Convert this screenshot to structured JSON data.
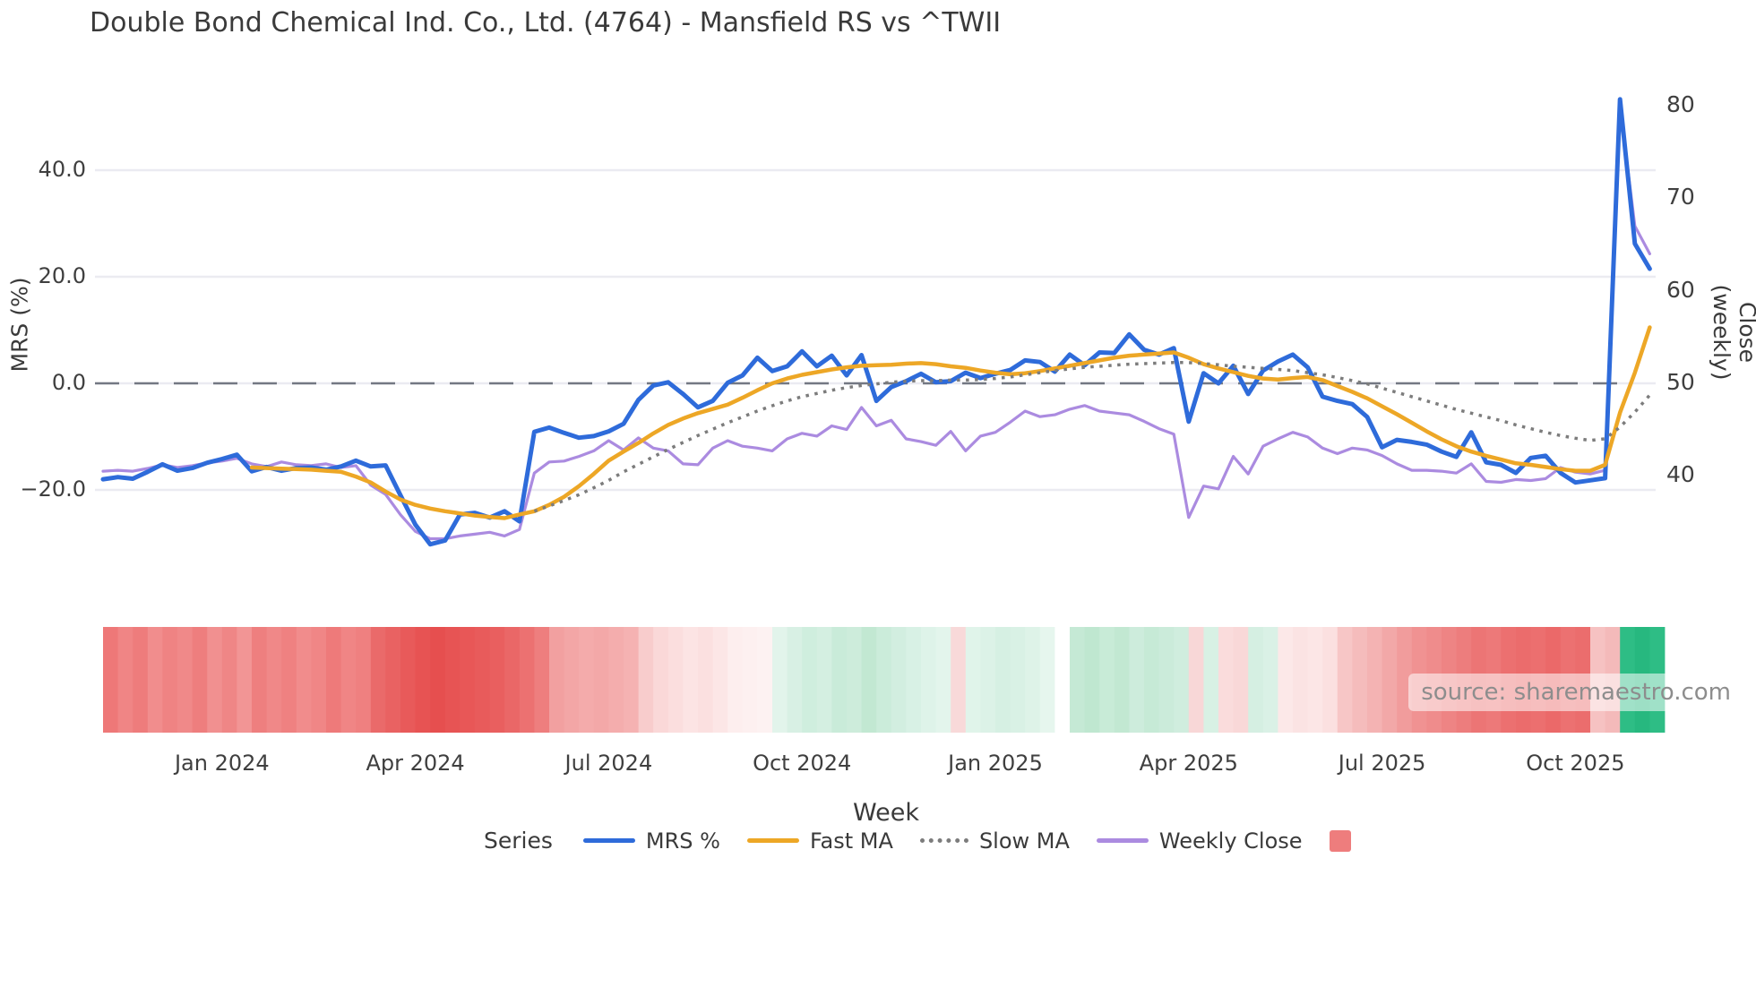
{
  "title": "Double Bond Chemical Ind. Co., Ltd. (4764) - Mansfield RS vs ^TWII",
  "source_text": "source: sharemaestro.com",
  "axes": {
    "left": {
      "label": "MRS (%)",
      "ticks": [
        {
          "label": "40.0",
          "value": 40
        },
        {
          "label": "20.0",
          "value": 20
        },
        {
          "label": "0.0",
          "value": 0
        },
        {
          "label": "−20.0",
          "value": -20
        }
      ]
    },
    "right": {
      "label": "Close (weekly)",
      "ticks": [
        {
          "label": "80",
          "value": 80
        },
        {
          "label": "70",
          "value": 70
        },
        {
          "label": "60",
          "value": 60
        },
        {
          "label": "50",
          "value": 50
        },
        {
          "label": "40",
          "value": 40
        }
      ]
    },
    "x": {
      "label": "Week",
      "ticks": [
        {
          "label": "Jan 2024",
          "week": 8
        },
        {
          "label": "Apr 2024",
          "week": 21
        },
        {
          "label": "Jul 2024",
          "week": 34
        },
        {
          "label": "Oct 2024",
          "week": 47
        },
        {
          "label": "Jan 2025",
          "week": 60
        },
        {
          "label": "Apr 2025",
          "week": 73
        },
        {
          "label": "Jul 2025",
          "week": 86
        },
        {
          "label": "Oct 2025",
          "week": 99
        }
      ]
    }
  },
  "legend": {
    "series_label": "Series",
    "items": [
      {
        "label": "MRS %",
        "color": "#2e6bda",
        "style": "solid"
      },
      {
        "label": "Fast MA",
        "color": "#eda726",
        "style": "solid"
      },
      {
        "label": "Slow MA",
        "color": "#7c7c7c",
        "style": "dotted"
      },
      {
        "label": "Weekly Close",
        "color": "#ab8be0",
        "style": "solid"
      }
    ],
    "heat_swatch_color": "#ee7d7d"
  },
  "chart_data": {
    "type": "line",
    "title": "Double Bond Chemical Ind. Co., Ltd. (4764) - Mansfield RS vs ^TWII",
    "xlabel": "Week",
    "ylabel_left": "MRS (%)",
    "ylabel_right": "Close (weekly)",
    "x_unit": "week_index",
    "n_weeks": 105,
    "ylim_left": [
      -35,
      58
    ],
    "ylim_right": [
      32,
      80.5
    ],
    "grid": "horizontal-light",
    "zero_line": {
      "value": 0,
      "style": "dashed",
      "color": "#5f6470"
    },
    "legend_position": "bottom",
    "series": [
      {
        "name": "MRS %",
        "axis": "left",
        "color": "#2e6bda",
        "width": 5,
        "style": "solid",
        "values": [
          -18.0,
          -17.6,
          -17.9,
          -16.6,
          -15.2,
          -16.4,
          -15.9,
          -14.9,
          -14.2,
          -13.4,
          -16.5,
          -15.7,
          -16.4,
          -15.9,
          -15.8,
          -16.2,
          -15.6,
          -14.5,
          -15.6,
          -15.4,
          -21.0,
          -26.5,
          -30.2,
          -29.5,
          -24.6,
          -24.3,
          -25.2,
          -24.0,
          -25.9,
          -9.1,
          -8.3,
          -9.3,
          -10.2,
          -9.9,
          -9.0,
          -7.6,
          -3.1,
          -0.4,
          0.2,
          -2.0,
          -4.5,
          -3.3,
          0.1,
          1.5,
          4.8,
          2.3,
          3.2,
          6.0,
          3.2,
          5.2,
          1.5,
          5.3,
          -3.3,
          -0.7,
          0.4,
          1.8,
          0.2,
          0.4,
          2.0,
          1.0,
          1.8,
          2.5,
          4.3,
          4.0,
          2.2,
          5.4,
          3.4,
          5.8,
          5.7,
          9.2,
          6.3,
          5.4,
          6.6,
          -7.2,
          1.9,
          0.0,
          3.3,
          -2.0,
          2.4,
          4.1,
          5.4,
          3.0,
          -2.5,
          -3.3,
          -3.9,
          -6.3,
          -12.0,
          -10.6,
          -11.0,
          -11.5,
          -12.8,
          -13.8,
          -9.2,
          -14.8,
          -15.3,
          -16.8,
          -14.0,
          -13.6,
          -16.8,
          -18.6,
          -18.2,
          -17.8,
          53.3,
          26.2,
          21.5
        ]
      },
      {
        "name": "Fast MA",
        "axis": "left",
        "color": "#eda726",
        "width": 4.5,
        "style": "solid",
        "values": [
          null,
          null,
          null,
          null,
          null,
          null,
          null,
          null,
          null,
          null,
          -15.8,
          -15.9,
          -16.0,
          -16.1,
          -16.2,
          -16.4,
          -16.6,
          -17.5,
          -18.6,
          -20.3,
          -21.8,
          -22.8,
          -23.5,
          -24.0,
          -24.4,
          -24.8,
          -25.1,
          -25.3,
          -24.6,
          -24.0,
          -22.8,
          -21.3,
          -19.3,
          -17.0,
          -14.5,
          -12.8,
          -11.2,
          -9.4,
          -7.8,
          -6.6,
          -5.6,
          -4.8,
          -4.0,
          -2.7,
          -1.3,
          0.0,
          0.9,
          1.6,
          2.1,
          2.6,
          3.0,
          3.3,
          3.4,
          3.5,
          3.7,
          3.8,
          3.6,
          3.2,
          2.9,
          2.4,
          2.0,
          1.7,
          1.9,
          2.3,
          2.8,
          3.3,
          3.8,
          4.3,
          4.8,
          5.2,
          5.4,
          5.6,
          5.8,
          4.8,
          3.6,
          2.8,
          2.1,
          1.4,
          0.9,
          0.7,
          1.0,
          1.2,
          0.6,
          -0.5,
          -1.6,
          -2.8,
          -4.3,
          -5.8,
          -7.4,
          -9.0,
          -10.5,
          -11.8,
          -12.8,
          -13.6,
          -14.3,
          -15.0,
          -15.3,
          -15.7,
          -16.1,
          -16.4,
          -16.4,
          -15.3,
          -5.5,
          2.0,
          10.5
        ]
      },
      {
        "name": "Slow MA",
        "axis": "left",
        "color": "#7c7c7c",
        "width": 3.5,
        "style": "dotted",
        "values": [
          null,
          null,
          null,
          null,
          null,
          null,
          null,
          null,
          null,
          null,
          null,
          null,
          null,
          null,
          null,
          null,
          null,
          null,
          null,
          null,
          null,
          null,
          null,
          null,
          null,
          null,
          null,
          null,
          null,
          -24.0,
          -23.0,
          -22.0,
          -20.9,
          -19.6,
          -18.2,
          -16.6,
          -15.2,
          -13.8,
          -12.4,
          -11.1,
          -9.8,
          -8.6,
          -7.4,
          -6.3,
          -5.2,
          -4.2,
          -3.3,
          -2.5,
          -1.9,
          -1.3,
          -0.8,
          -0.4,
          -0.1,
          0.2,
          0.4,
          0.5,
          0.5,
          0.6,
          0.6,
          0.7,
          0.9,
          1.2,
          1.6,
          2.0,
          2.4,
          2.7,
          3.0,
          3.2,
          3.4,
          3.6,
          3.7,
          3.8,
          3.9,
          3.9,
          3.7,
          3.5,
          3.2,
          3.0,
          2.8,
          2.6,
          2.4,
          2.0,
          1.6,
          1.1,
          0.5,
          -0.1,
          -0.9,
          -1.7,
          -2.5,
          -3.3,
          -4.1,
          -4.9,
          -5.6,
          -6.3,
          -7.0,
          -7.8,
          -8.5,
          -9.2,
          -9.8,
          -10.3,
          -10.7,
          -10.4,
          -8.2,
          -5.4,
          -2.2
        ]
      },
      {
        "name": "Weekly Close",
        "axis": "right",
        "color": "#ab8be0",
        "width": 3.2,
        "style": "solid",
        "values": [
          40.5,
          40.6,
          40.5,
          40.8,
          41.2,
          40.9,
          41.1,
          41.4,
          41.6,
          41.9,
          41.3,
          41.0,
          41.5,
          41.2,
          41.1,
          41.3,
          40.9,
          41.1,
          39.0,
          38.0,
          35.8,
          34.0,
          33.2,
          33.2,
          33.5,
          33.7,
          33.9,
          33.5,
          34.2,
          40.3,
          41.5,
          41.6,
          42.1,
          42.7,
          43.8,
          42.8,
          44.1,
          43.0,
          42.7,
          41.3,
          41.2,
          43.0,
          43.8,
          43.2,
          43.0,
          42.7,
          44.0,
          44.6,
          44.3,
          45.4,
          45.0,
          47.4,
          45.4,
          46.0,
          44.0,
          43.7,
          43.3,
          44.8,
          42.7,
          44.3,
          44.7,
          45.8,
          47.0,
          46.4,
          46.6,
          47.2,
          47.6,
          47.0,
          46.8,
          46.6,
          45.9,
          45.1,
          44.5,
          35.5,
          38.9,
          38.6,
          42.1,
          40.2,
          43.2,
          44.0,
          44.7,
          44.2,
          43.0,
          42.4,
          43.0,
          42.8,
          42.2,
          41.3,
          40.6,
          40.6,
          40.5,
          40.3,
          41.3,
          39.4,
          39.3,
          39.6,
          39.5,
          39.7,
          40.9,
          40.4,
          40.2,
          40.6,
          80.0,
          67.0,
          64.0
        ]
      }
    ],
    "heatmap_strip": {
      "description": "weekly color strip below chart",
      "colors": [
        "#ee7878",
        "#f08585",
        "#ee7c7c",
        "#f18d8d",
        "#ef8383",
        "#f08989",
        "#ee7e7e",
        "#f19090",
        "#ef8686",
        "#f29595",
        "#ee7f7f",
        "#f08888",
        "#ef8181",
        "#f18c8c",
        "#f08686",
        "#ee7a7a",
        "#f08585",
        "#ef8080",
        "#ea6a6a",
        "#e96262",
        "#e85a5a",
        "#e75353",
        "#e64f4f",
        "#e75454",
        "#e85757",
        "#e85b5b",
        "#e95f5f",
        "#ea6767",
        "#ec7171",
        "#ee7e7e",
        "#f2a0a0",
        "#f3a6a6",
        "#f4abab",
        "#f3a8a8",
        "#f4adad",
        "#f5b2b2",
        "#f8cccc",
        "#fad8d8",
        "#fbdede",
        "#fce4e4",
        "#fbe0e0",
        "#fce6e6",
        "#fdeeee",
        "#fdf0f0",
        "#fdf2f2",
        "#e2f4eb",
        "#d8f0e4",
        "#cfeede",
        "#d4efe1",
        "#c9ebd9",
        "#cdecdb",
        "#c2e8d2",
        "#cbecda",
        "#d2eee0",
        "#d8f1e5",
        "#def3e9",
        "#e3f5ec",
        "#f8d9d9",
        "#e0f4ea",
        "#dcf2e7",
        "#d6f0e3",
        "#d9f1e5",
        "#def3e8",
        "#e6f6ee",
        "#ffffff",
        "#c5e9d5",
        "#bfe7d0",
        "#c8ebd7",
        "#c2e8d2",
        "#cdecdc",
        "#c6ead6",
        "#cbebda",
        "#d0edde",
        "#f8d7d7",
        "#d8f1e4",
        "#fadcdc",
        "#f9d8d8",
        "#d5efe2",
        "#daf1e6",
        "#fce8e8",
        "#fbe3e3",
        "#fce6e6",
        "#fbe0e0",
        "#f7c6c6",
        "#f5bcbc",
        "#f4b3b3",
        "#f2a8a8",
        "#f19c9c",
        "#f09292",
        "#ef8c8c",
        "#ee8484",
        "#ed7d7d",
        "#ec7575",
        "#ed7979",
        "#ec7070",
        "#eb6c6c",
        "#ec6f6f",
        "#eb6969",
        "#ec7171",
        "#eb6d6d",
        "#f6c2c2",
        "#f4baba",
        "#2ebd85",
        "#27b87f",
        "#2ebd85"
      ]
    }
  }
}
